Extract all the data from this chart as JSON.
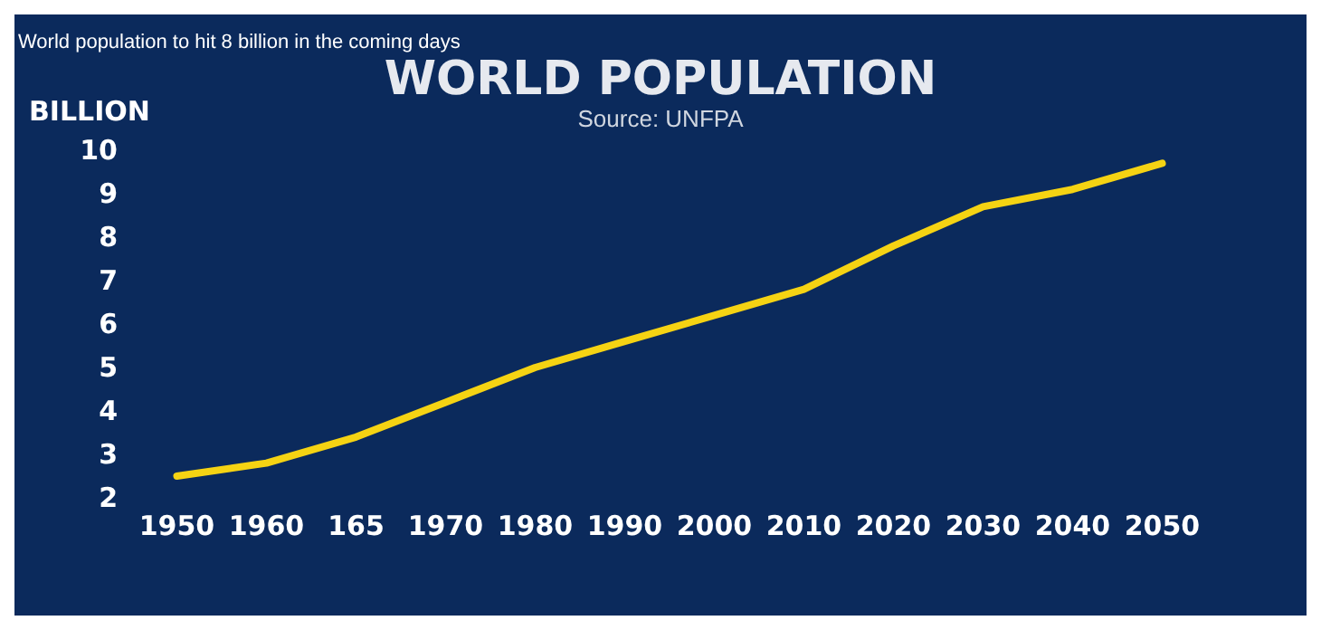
{
  "chart_data": {
    "type": "line",
    "title": "WORLD POPULATION",
    "subtitle": "Source: UNFPA",
    "ylabel": "BILLION",
    "annotations": [
      "World population to hit 8 billion in the coming days"
    ],
    "categories": [
      "1950",
      "1960",
      "165",
      "1970",
      "1980",
      "1990",
      "2000",
      "2010",
      "2020",
      "2030",
      "2040",
      "2050"
    ],
    "series": [
      {
        "color": "#f5d313",
        "values": [
          2.5,
          2.8,
          3.4,
          4.2,
          5.0,
          5.6,
          6.2,
          6.8,
          7.8,
          8.7,
          9.1,
          9.7
        ]
      }
    ],
    "ylim": [
      2,
      10
    ],
    "yticks": [
      2,
      3,
      4,
      5,
      6,
      7,
      8,
      9,
      10
    ],
    "grid": false,
    "marker": "none",
    "line_style": "solid"
  }
}
